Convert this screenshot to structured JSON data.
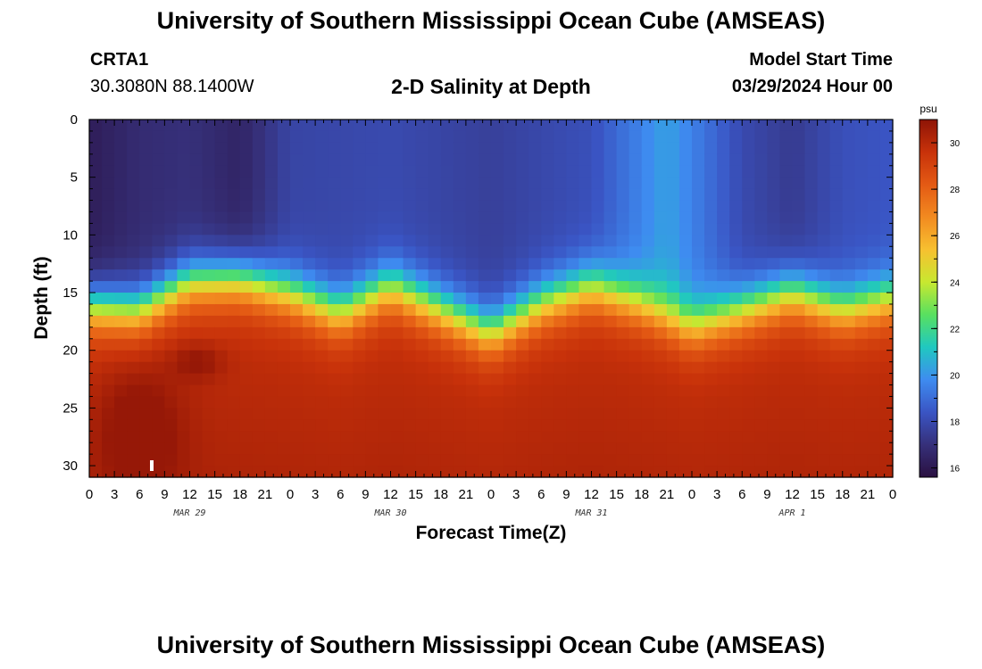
{
  "header": {
    "title": "University of Southern Mississippi Ocean Cube (AMSEAS)",
    "station": "CRTA1",
    "coords": "30.3080N  88.1400W",
    "subtitle": "2-D Salinity at Depth",
    "model_start_label": "Model Start Time",
    "model_start_value": "03/29/2024 Hour 00"
  },
  "footer": {
    "title": "University of Southern Mississippi Ocean Cube (AMSEAS)"
  },
  "chart_data": {
    "type": "heatmap",
    "title": "2-D Salinity at Depth",
    "xlabel": "Forecast Time(Z)",
    "ylabel": "Depth (ft)",
    "x_hours_range": [
      0,
      96
    ],
    "y_range": [
      0,
      31
    ],
    "x_ticks": [
      "0",
      "3",
      "6",
      "9",
      "12",
      "15",
      "18",
      "21",
      "0",
      "3",
      "6",
      "9",
      "12",
      "15",
      "18",
      "21",
      "0",
      "3",
      "6",
      "9",
      "12",
      "15",
      "18",
      "21",
      "0",
      "3",
      "6",
      "9",
      "12",
      "15",
      "18",
      "21",
      "0"
    ],
    "y_ticks": [
      0,
      5,
      10,
      15,
      20,
      25,
      30
    ],
    "day_labels": [
      {
        "text": "MAR 29",
        "hour": 12
      },
      {
        "text": "MAR 30",
        "hour": 36
      },
      {
        "text": "MAR 31",
        "hour": 60
      },
      {
        "text": "APR 1",
        "hour": 84
      }
    ],
    "colorbar": {
      "unit": "psu",
      "min": 15.6,
      "max": 31,
      "ticks": [
        16,
        18,
        20,
        22,
        24,
        26,
        28,
        30
      ],
      "colors": [
        "#2a1040",
        "#36307a",
        "#3a55c4",
        "#3e8cf0",
        "#20c8c0",
        "#58e060",
        "#c8e830",
        "#f7c030",
        "#f28a20",
        "#e45a14",
        "#c8320a",
        "#8e1406"
      ]
    },
    "halocline_depth_ft": [
      {
        "hour": 0,
        "depth": 16.2
      },
      {
        "hour": 6,
        "depth": 16.5
      },
      {
        "hour": 12,
        "depth": 14.0
      },
      {
        "hour": 18,
        "depth": 13.8
      },
      {
        "hour": 24,
        "depth": 15.0
      },
      {
        "hour": 30,
        "depth": 16.8
      },
      {
        "hour": 36,
        "depth": 14.5
      },
      {
        "hour": 42,
        "depth": 16.5
      },
      {
        "hour": 48,
        "depth": 18.5
      },
      {
        "hour": 54,
        "depth": 16.0
      },
      {
        "hour": 60,
        "depth": 14.5
      },
      {
        "hour": 66,
        "depth": 16.0
      },
      {
        "hour": 72,
        "depth": 18.0
      },
      {
        "hour": 78,
        "depth": 16.5
      },
      {
        "hour": 84,
        "depth": 15.0
      },
      {
        "hour": 90,
        "depth": 16.5
      },
      {
        "hour": 96,
        "depth": 15.5
      }
    ],
    "surface_salinity_psu": [
      {
        "hour": 0,
        "value": 16.2
      },
      {
        "hour": 6,
        "value": 16.8
      },
      {
        "hour": 12,
        "value": 17.0
      },
      {
        "hour": 18,
        "value": 16.5
      },
      {
        "hour": 24,
        "value": 17.8
      },
      {
        "hour": 36,
        "value": 18.0
      },
      {
        "hour": 48,
        "value": 17.6
      },
      {
        "hour": 60,
        "value": 18.2
      },
      {
        "hour": 69,
        "value": 20.3
      },
      {
        "hour": 78,
        "value": 18.0
      },
      {
        "hour": 84,
        "value": 17.4
      },
      {
        "hour": 90,
        "value": 18.2
      },
      {
        "hour": 96,
        "value": 18.4
      }
    ],
    "bottom_salinity_psu": 29.8,
    "peak_salinity_psu": 30.8
  }
}
